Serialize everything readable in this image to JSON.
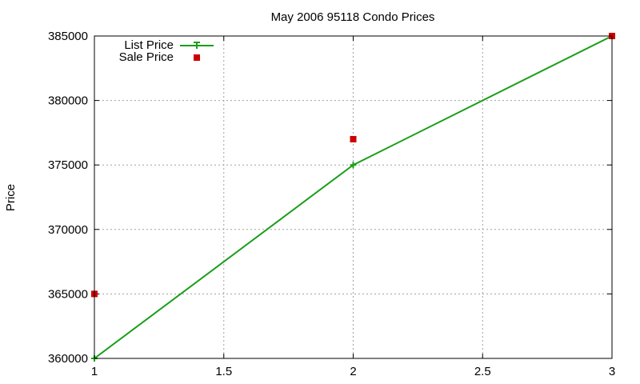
{
  "chart_data": {
    "type": "line",
    "title": "May 2006 95118 Condo Prices",
    "xlabel": "",
    "ylabel": "Price",
    "xlim": [
      1,
      3
    ],
    "ylim": [
      360000,
      385000
    ],
    "xticks": [
      "1",
      "1.5",
      "2",
      "2.5",
      "3"
    ],
    "yticks": [
      "360000",
      "365000",
      "370000",
      "375000",
      "380000",
      "385000"
    ],
    "grid": true,
    "legend_position": "top-left",
    "series": [
      {
        "name": "List Price",
        "style": "line+cross",
        "color": "#1a9e1a",
        "x": [
          1,
          2,
          3
        ],
        "y": [
          360000,
          375000,
          385000
        ]
      },
      {
        "name": "Sale Price",
        "style": "square-points",
        "color": "#cc0000",
        "x": [
          1,
          2,
          3
        ],
        "y": [
          365000,
          377000,
          385000
        ]
      }
    ]
  }
}
